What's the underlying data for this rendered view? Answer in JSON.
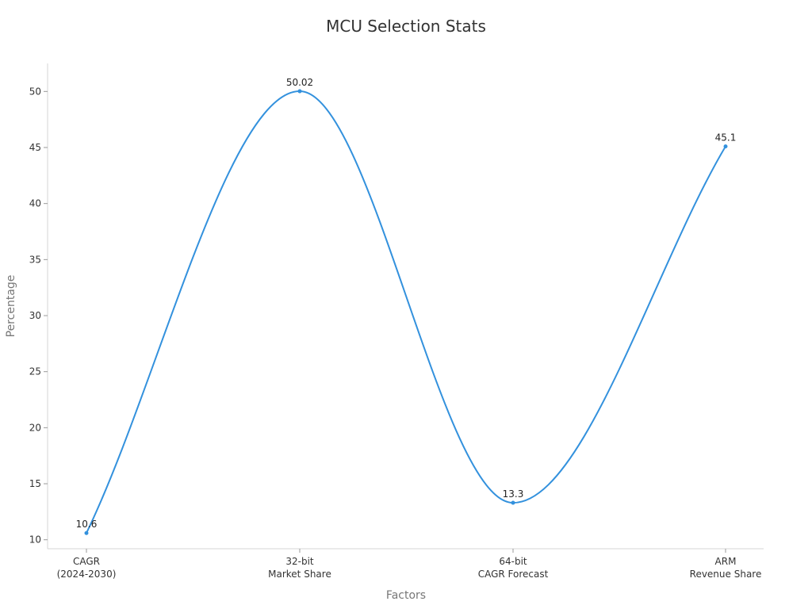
{
  "chart_data": {
    "type": "line",
    "title": "MCU Selection Stats",
    "xlabel": "Factors",
    "ylabel": "Percentage",
    "categories": [
      [
        "CAGR",
        "(2024-2030)"
      ],
      [
        "32-bit",
        "Market Share"
      ],
      [
        "64-bit",
        "CAGR Forecast"
      ],
      [
        "ARM",
        "Revenue Share"
      ]
    ],
    "series": [
      {
        "values": [
          10.6,
          50.02,
          13.3,
          45.1
        ],
        "data_labels": [
          "10.6",
          "50.02",
          "13.3",
          "45.1"
        ],
        "color": "#3391dd"
      }
    ],
    "yticks": [
      10,
      15,
      20,
      25,
      30,
      35,
      40,
      45,
      50
    ],
    "ylim": [
      9.2,
      52.5
    ],
    "smooth": true,
    "grid": false
  }
}
